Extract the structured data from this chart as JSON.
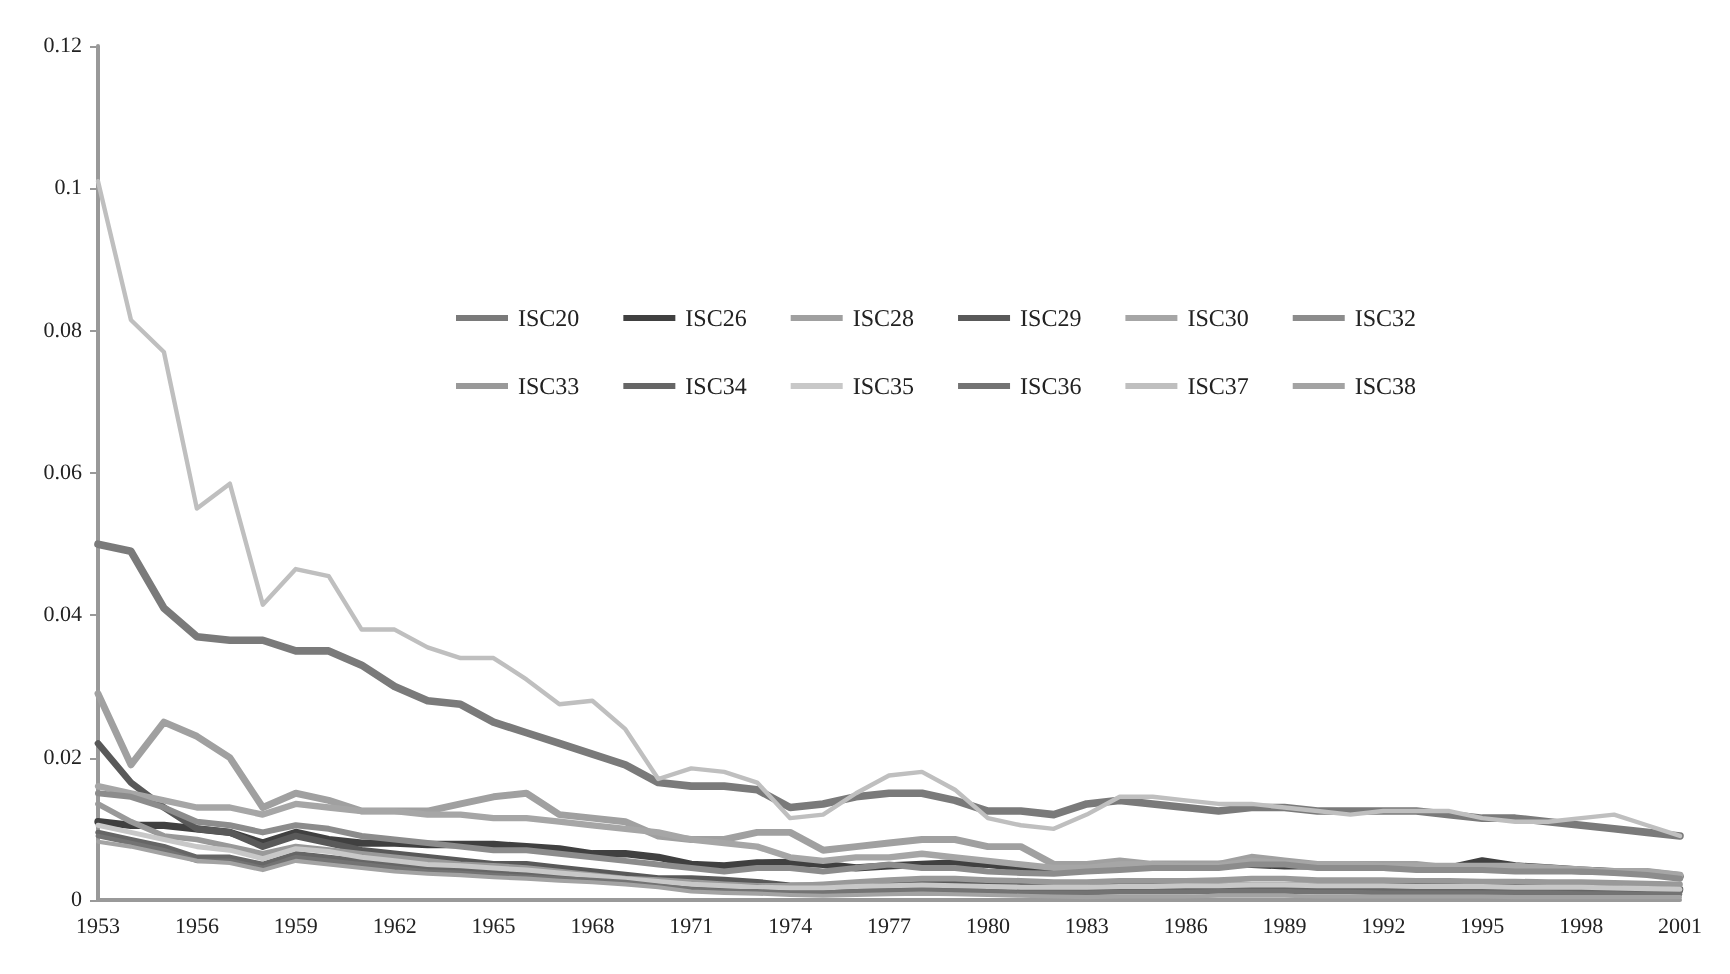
{
  "chart_data": {
    "type": "line",
    "categories": [
      "1953",
      null,
      null,
      "1956",
      null,
      null,
      "1959",
      null,
      null,
      "1962",
      null,
      null,
      "1965",
      null,
      null,
      "1968",
      null,
      null,
      "1971",
      null,
      null,
      "1974",
      null,
      null,
      "1977",
      null,
      null,
      "1980",
      null,
      null,
      "1983",
      null,
      null,
      "1986",
      null,
      null,
      "1989",
      null,
      null,
      "1992",
      null,
      null,
      "1995",
      null,
      null,
      "1998",
      null,
      null,
      "2001"
    ],
    "series": [
      {
        "name": "ISC20",
        "color": "#7a7a7a",
        "values": [
          0.05,
          0.049,
          0.041,
          0.037,
          0.0365,
          0.0365,
          0.035,
          0.035,
          0.033,
          0.03,
          0.028,
          0.0275,
          0.025,
          0.0235,
          0.022,
          0.0205,
          0.019,
          0.0165,
          0.016,
          0.016,
          0.0155,
          0.013,
          0.0135,
          0.0145,
          0.015,
          0.015,
          0.014,
          0.0125,
          0.0125,
          0.012,
          0.0135,
          0.014,
          0.0135,
          0.013,
          0.0125,
          0.013,
          0.013,
          0.0125,
          0.0125,
          0.0125,
          0.0125,
          0.012,
          0.0115,
          0.0115,
          0.011,
          0.0105,
          0.01,
          0.0095,
          0.009
        ]
      },
      {
        "name": "ISC26",
        "color": "#404040",
        "values": [
          0.011,
          0.0105,
          0.0105,
          0.01,
          0.0095,
          0.008,
          0.0095,
          0.0085,
          0.008,
          0.008,
          0.0078,
          0.0078,
          0.0078,
          0.0075,
          0.0072,
          0.0065,
          0.0065,
          0.006,
          0.005,
          0.0048,
          0.0052,
          0.0053,
          0.005,
          0.0045,
          0.0048,
          0.005,
          0.0052,
          0.005,
          0.0045,
          0.0042,
          0.0042,
          0.0045,
          0.005,
          0.005,
          0.005,
          0.005,
          0.0048,
          0.0048,
          0.0048,
          0.0046,
          0.0045,
          0.0045,
          0.0055,
          0.0048,
          0.0045,
          0.0042,
          0.004,
          0.0038,
          0.0033
        ]
      },
      {
        "name": "ISC28",
        "color": "#a0a0a0",
        "values": [
          0.029,
          0.019,
          0.025,
          0.023,
          0.02,
          0.013,
          0.015,
          0.014,
          0.0125,
          0.0125,
          0.0125,
          0.0135,
          0.0145,
          0.015,
          0.012,
          0.0115,
          0.011,
          0.009,
          0.0085,
          0.0085,
          0.0095,
          0.0095,
          0.007,
          0.0075,
          0.008,
          0.0085,
          0.0085,
          0.0075,
          0.0075,
          0.005,
          0.005,
          0.0055,
          0.005,
          0.005,
          0.005,
          0.006,
          0.0055,
          0.005,
          0.005,
          0.005,
          0.005,
          0.0045,
          0.0045,
          0.0045,
          0.0045,
          0.004,
          0.004,
          0.004,
          0.0035
        ]
      },
      {
        "name": "ISC29",
        "color": "#595959",
        "values": [
          0.022,
          0.0165,
          0.013,
          0.01,
          0.0095,
          0.0075,
          0.009,
          0.008,
          0.007,
          0.0065,
          0.006,
          0.0055,
          0.005,
          0.005,
          0.0045,
          0.004,
          0.0035,
          0.003,
          0.003,
          0.0028,
          0.0025,
          0.002,
          0.002,
          0.0022,
          0.0025,
          0.0025,
          0.0025,
          0.002,
          0.002,
          0.002,
          0.002,
          0.002,
          0.002,
          0.002,
          0.002,
          0.002,
          0.002,
          0.002,
          0.002,
          0.002,
          0.002,
          0.002,
          0.002,
          0.0018,
          0.0018,
          0.0018,
          0.0017,
          0.0016,
          0.0015
        ]
      },
      {
        "name": "ISC30",
        "color": "#a6a6a6",
        "values": [
          0.016,
          0.015,
          0.014,
          0.013,
          0.013,
          0.012,
          0.0135,
          0.013,
          0.0125,
          0.0125,
          0.012,
          0.012,
          0.0115,
          0.0115,
          0.011,
          0.0105,
          0.01,
          0.0095,
          0.0085,
          0.008,
          0.0075,
          0.006,
          0.0055,
          0.006,
          0.006,
          0.0065,
          0.006,
          0.0055,
          0.005,
          0.0045,
          0.0045,
          0.005,
          0.005,
          0.0048,
          0.0048,
          0.0055,
          0.0052,
          0.005,
          0.005,
          0.0048,
          0.0048,
          0.0048,
          0.0048,
          0.0048,
          0.0045,
          0.0043,
          0.004,
          0.004,
          0.0035
        ]
      },
      {
        "name": "ISC32",
        "color": "#8c8c8c",
        "values": [
          0.015,
          0.0145,
          0.013,
          0.011,
          0.0105,
          0.0095,
          0.0105,
          0.01,
          0.009,
          0.0085,
          0.008,
          0.0075,
          0.007,
          0.007,
          0.0065,
          0.006,
          0.0055,
          0.005,
          0.0045,
          0.004,
          0.0045,
          0.0045,
          0.004,
          0.0045,
          0.005,
          0.0045,
          0.0045,
          0.004,
          0.0038,
          0.0037,
          0.004,
          0.0042,
          0.0045,
          0.0045,
          0.0045,
          0.005,
          0.005,
          0.0045,
          0.0045,
          0.0045,
          0.0042,
          0.0042,
          0.0042,
          0.004,
          0.004,
          0.004,
          0.0038,
          0.0035,
          0.003
        ]
      },
      {
        "name": "ISC33",
        "color": "#999999",
        "values": [
          0.0135,
          0.011,
          0.009,
          0.0085,
          0.0075,
          0.0065,
          0.0075,
          0.007,
          0.0065,
          0.006,
          0.0055,
          0.005,
          0.0048,
          0.0045,
          0.004,
          0.0035,
          0.003,
          0.0028,
          0.0025,
          0.0022,
          0.002,
          0.002,
          0.0022,
          0.0025,
          0.0028,
          0.003,
          0.003,
          0.0028,
          0.0027,
          0.0025,
          0.0025,
          0.0027,
          0.0027,
          0.0027,
          0.0028,
          0.003,
          0.003,
          0.0028,
          0.0028,
          0.0028,
          0.0027,
          0.0027,
          0.0026,
          0.0026,
          0.0025,
          0.0025,
          0.0024,
          0.0023,
          0.0022
        ]
      },
      {
        "name": "ISC34",
        "color": "#666666",
        "values": [
          0.0095,
          0.0085,
          0.0075,
          0.006,
          0.006,
          0.005,
          0.0065,
          0.006,
          0.0055,
          0.005,
          0.0045,
          0.0042,
          0.004,
          0.0038,
          0.0035,
          0.003,
          0.0028,
          0.0025,
          0.002,
          0.0018,
          0.0018,
          0.0015,
          0.0015,
          0.0017,
          0.0018,
          0.002,
          0.0018,
          0.0017,
          0.0015,
          0.0015,
          0.0015,
          0.0016,
          0.0017,
          0.0017,
          0.0017,
          0.0018,
          0.0018,
          0.0017,
          0.0016,
          0.0016,
          0.0016,
          0.0015,
          0.0015,
          0.0015,
          0.0015,
          0.0014,
          0.0014,
          0.0013,
          0.0012
        ]
      },
      {
        "name": "ISC35",
        "color": "#c8c8c8",
        "values": [
          0.0105,
          0.0095,
          0.0085,
          0.0075,
          0.007,
          0.0058,
          0.0072,
          0.0068,
          0.006,
          0.0055,
          0.005,
          0.0048,
          0.0045,
          0.0042,
          0.0038,
          0.0034,
          0.003,
          0.0026,
          0.0022,
          0.002,
          0.0018,
          0.0017,
          0.0017,
          0.0019,
          0.002,
          0.0021,
          0.002,
          0.0019,
          0.0018,
          0.0018,
          0.0018,
          0.0019,
          0.0019,
          0.002,
          0.002,
          0.0021,
          0.0021,
          0.002,
          0.002,
          0.002,
          0.0019,
          0.0019,
          0.0019,
          0.0018,
          0.0018,
          0.0018,
          0.0017,
          0.0016,
          0.0015
        ]
      },
      {
        "name": "ISC36",
        "color": "#737373",
        "values": [
          0.009,
          0.008,
          0.007,
          0.0055,
          0.0055,
          0.0045,
          0.006,
          0.0055,
          0.005,
          0.0045,
          0.004,
          0.0038,
          0.0035,
          0.0032,
          0.003,
          0.0028,
          0.0025,
          0.002,
          0.0015,
          0.0012,
          0.0012,
          0.001,
          0.001,
          0.0012,
          0.0013,
          0.0014,
          0.0013,
          0.0012,
          0.001,
          0.001,
          0.001,
          0.0011,
          0.0011,
          0.0011,
          0.0012,
          0.0012,
          0.0012,
          0.0011,
          0.0011,
          0.001,
          0.001,
          0.001,
          0.001,
          0.001,
          0.001,
          0.0009,
          0.0009,
          0.0008,
          0.0008
        ]
      },
      {
        "name": "ISC37",
        "color": "#bfbfbf",
        "values": [
          0.101,
          0.0815,
          0.077,
          0.055,
          0.0585,
          0.0415,
          0.0465,
          0.0455,
          0.038,
          0.038,
          0.0355,
          0.034,
          0.034,
          0.031,
          0.0275,
          0.028,
          0.024,
          0.017,
          0.0185,
          0.018,
          0.0165,
          0.0115,
          0.012,
          0.015,
          0.0175,
          0.018,
          0.0155,
          0.0115,
          0.0105,
          0.01,
          0.012,
          0.0145,
          0.0145,
          0.014,
          0.0135,
          0.0135,
          0.013,
          0.0125,
          0.012,
          0.0125,
          0.0125,
          0.0125,
          0.0115,
          0.011,
          0.011,
          0.0115,
          0.012,
          0.0105,
          0.009
        ]
      },
      {
        "name": "ISC38",
        "color": "#a3a3a3",
        "values": [
          0.0082,
          0.0075,
          0.0065,
          0.0055,
          0.0052,
          0.0042,
          0.0055,
          0.005,
          0.0045,
          0.004,
          0.0037,
          0.0035,
          0.0032,
          0.003,
          0.0027,
          0.0025,
          0.0022,
          0.0018,
          0.0012,
          0.001,
          0.0009,
          0.0007,
          0.0006,
          0.0007,
          0.0008,
          0.0009,
          0.0008,
          0.0007,
          0.0006,
          0.0005,
          0.0004,
          0.0005,
          0.0005,
          0.0005,
          0.0006,
          0.0006,
          0.0006,
          0.0005,
          0.0005,
          0.0005,
          0.0005,
          0.0005,
          0.0005,
          0.0004,
          0.0004,
          0.0004,
          0.0004,
          0.0004,
          0.0004
        ]
      }
    ],
    "ylim": [
      0,
      0.12
    ],
    "yticks": [
      0,
      0.02,
      0.04,
      0.06,
      0.08,
      0.1,
      0.12
    ],
    "legend": "top",
    "marker": "none",
    "line_style": "solid",
    "grid": false
  }
}
